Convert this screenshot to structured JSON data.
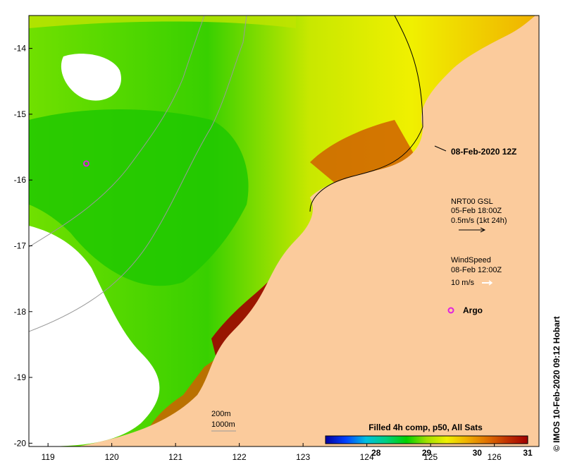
{
  "map": {
    "date_label": "08-Feb-2020 12Z",
    "lat_ticks": [
      {
        "value": -14,
        "label": "-14"
      },
      {
        "value": -15,
        "label": "-15"
      },
      {
        "value": -16,
        "label": "-16"
      },
      {
        "value": -17,
        "label": "-17"
      },
      {
        "value": -18,
        "label": "-18"
      },
      {
        "value": -19,
        "label": "-19"
      },
      {
        "value": -20,
        "label": "-20"
      }
    ],
    "lon_ticks": [
      {
        "value": 119,
        "label": "119"
      },
      {
        "value": 120,
        "label": "120"
      },
      {
        "value": 121,
        "label": "121"
      },
      {
        "value": 122,
        "label": "122"
      },
      {
        "value": 123,
        "label": "123"
      },
      {
        "value": 124,
        "label": "124"
      },
      {
        "value": 125,
        "label": "125"
      },
      {
        "value": 126,
        "label": "126"
      }
    ],
    "extent": {
      "lon_min": 118.7,
      "lon_max": 126.7,
      "lat_min": -20.05,
      "lat_max": -13.5
    },
    "current_legend": {
      "title": "NRT00 GSL",
      "time": "05-Feb 18:00Z",
      "scale": "0.5m/s (1kt 24h)"
    },
    "wind_legend": {
      "title": "WindSpeed",
      "time": "08-Feb 12:00Z",
      "scale": "10 m/s"
    },
    "argo": {
      "label": "Argo",
      "lon": 119.6,
      "lat": -15.75
    },
    "depth_labels": [
      "200m",
      "1000m"
    ],
    "colorbar": {
      "title": "Filled 4h comp, p50, All Sats",
      "min": 27.0,
      "max": 31.0,
      "tick_values": [
        28,
        29,
        30,
        31
      ],
      "tick_labels": [
        "28",
        "29",
        "30",
        "31"
      ],
      "colors": [
        "#0000a0",
        "#0040ff",
        "#00c0e0",
        "#00d080",
        "#00d000",
        "#a0e000",
        "#f0f000",
        "#f0b000",
        "#e07000",
        "#c03000",
        "#a00000"
      ]
    },
    "land_color": "#fbcb9c",
    "credit": "© IMOS 10-Feb-2020 09:12 Hobart"
  }
}
